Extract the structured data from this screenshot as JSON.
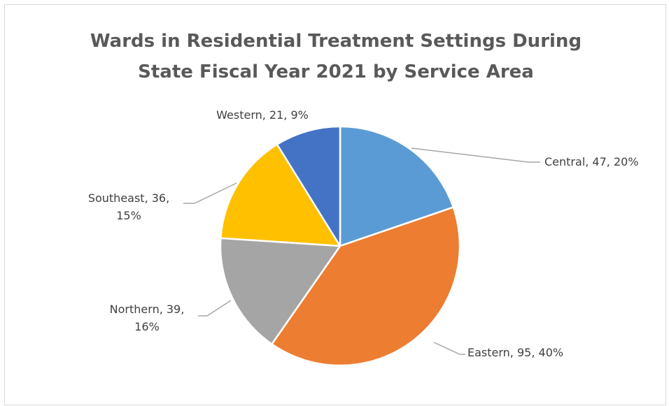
{
  "chart_data": {
    "type": "pie",
    "title": "Wards in Residential Treatment Settings During State Fiscal Year 2021 by Service Area",
    "title_lines": [
      "Wards in Residential Treatment Settings During",
      "State Fiscal Year 2021 by Service Area"
    ],
    "slices": [
      {
        "name": "Central",
        "value": 47,
        "percent": "20%",
        "color": "#5b9bd5",
        "label_lines": [
          "Central, 47, 20%"
        ]
      },
      {
        "name": "Eastern",
        "value": 95,
        "percent": "40%",
        "color": "#ed7d31",
        "label_lines": [
          "Eastern, 95, 40%"
        ]
      },
      {
        "name": "Northern",
        "value": 39,
        "percent": "16%",
        "color": "#a5a5a5",
        "label_lines": [
          "Northern, 39,",
          "16%"
        ]
      },
      {
        "name": "Southeast",
        "value": 36,
        "percent": "15%",
        "color": "#ffc000",
        "label_lines": [
          "Southeast, 36,",
          "15%"
        ]
      },
      {
        "name": "Western",
        "value": 21,
        "percent": "9%",
        "color": "#4472c4",
        "label_lines": [
          "Western, 21, 9%"
        ]
      }
    ],
    "start_angle": "top",
    "direction": "clockwise",
    "legend": "none",
    "label_style": "outside with leader lines"
  }
}
